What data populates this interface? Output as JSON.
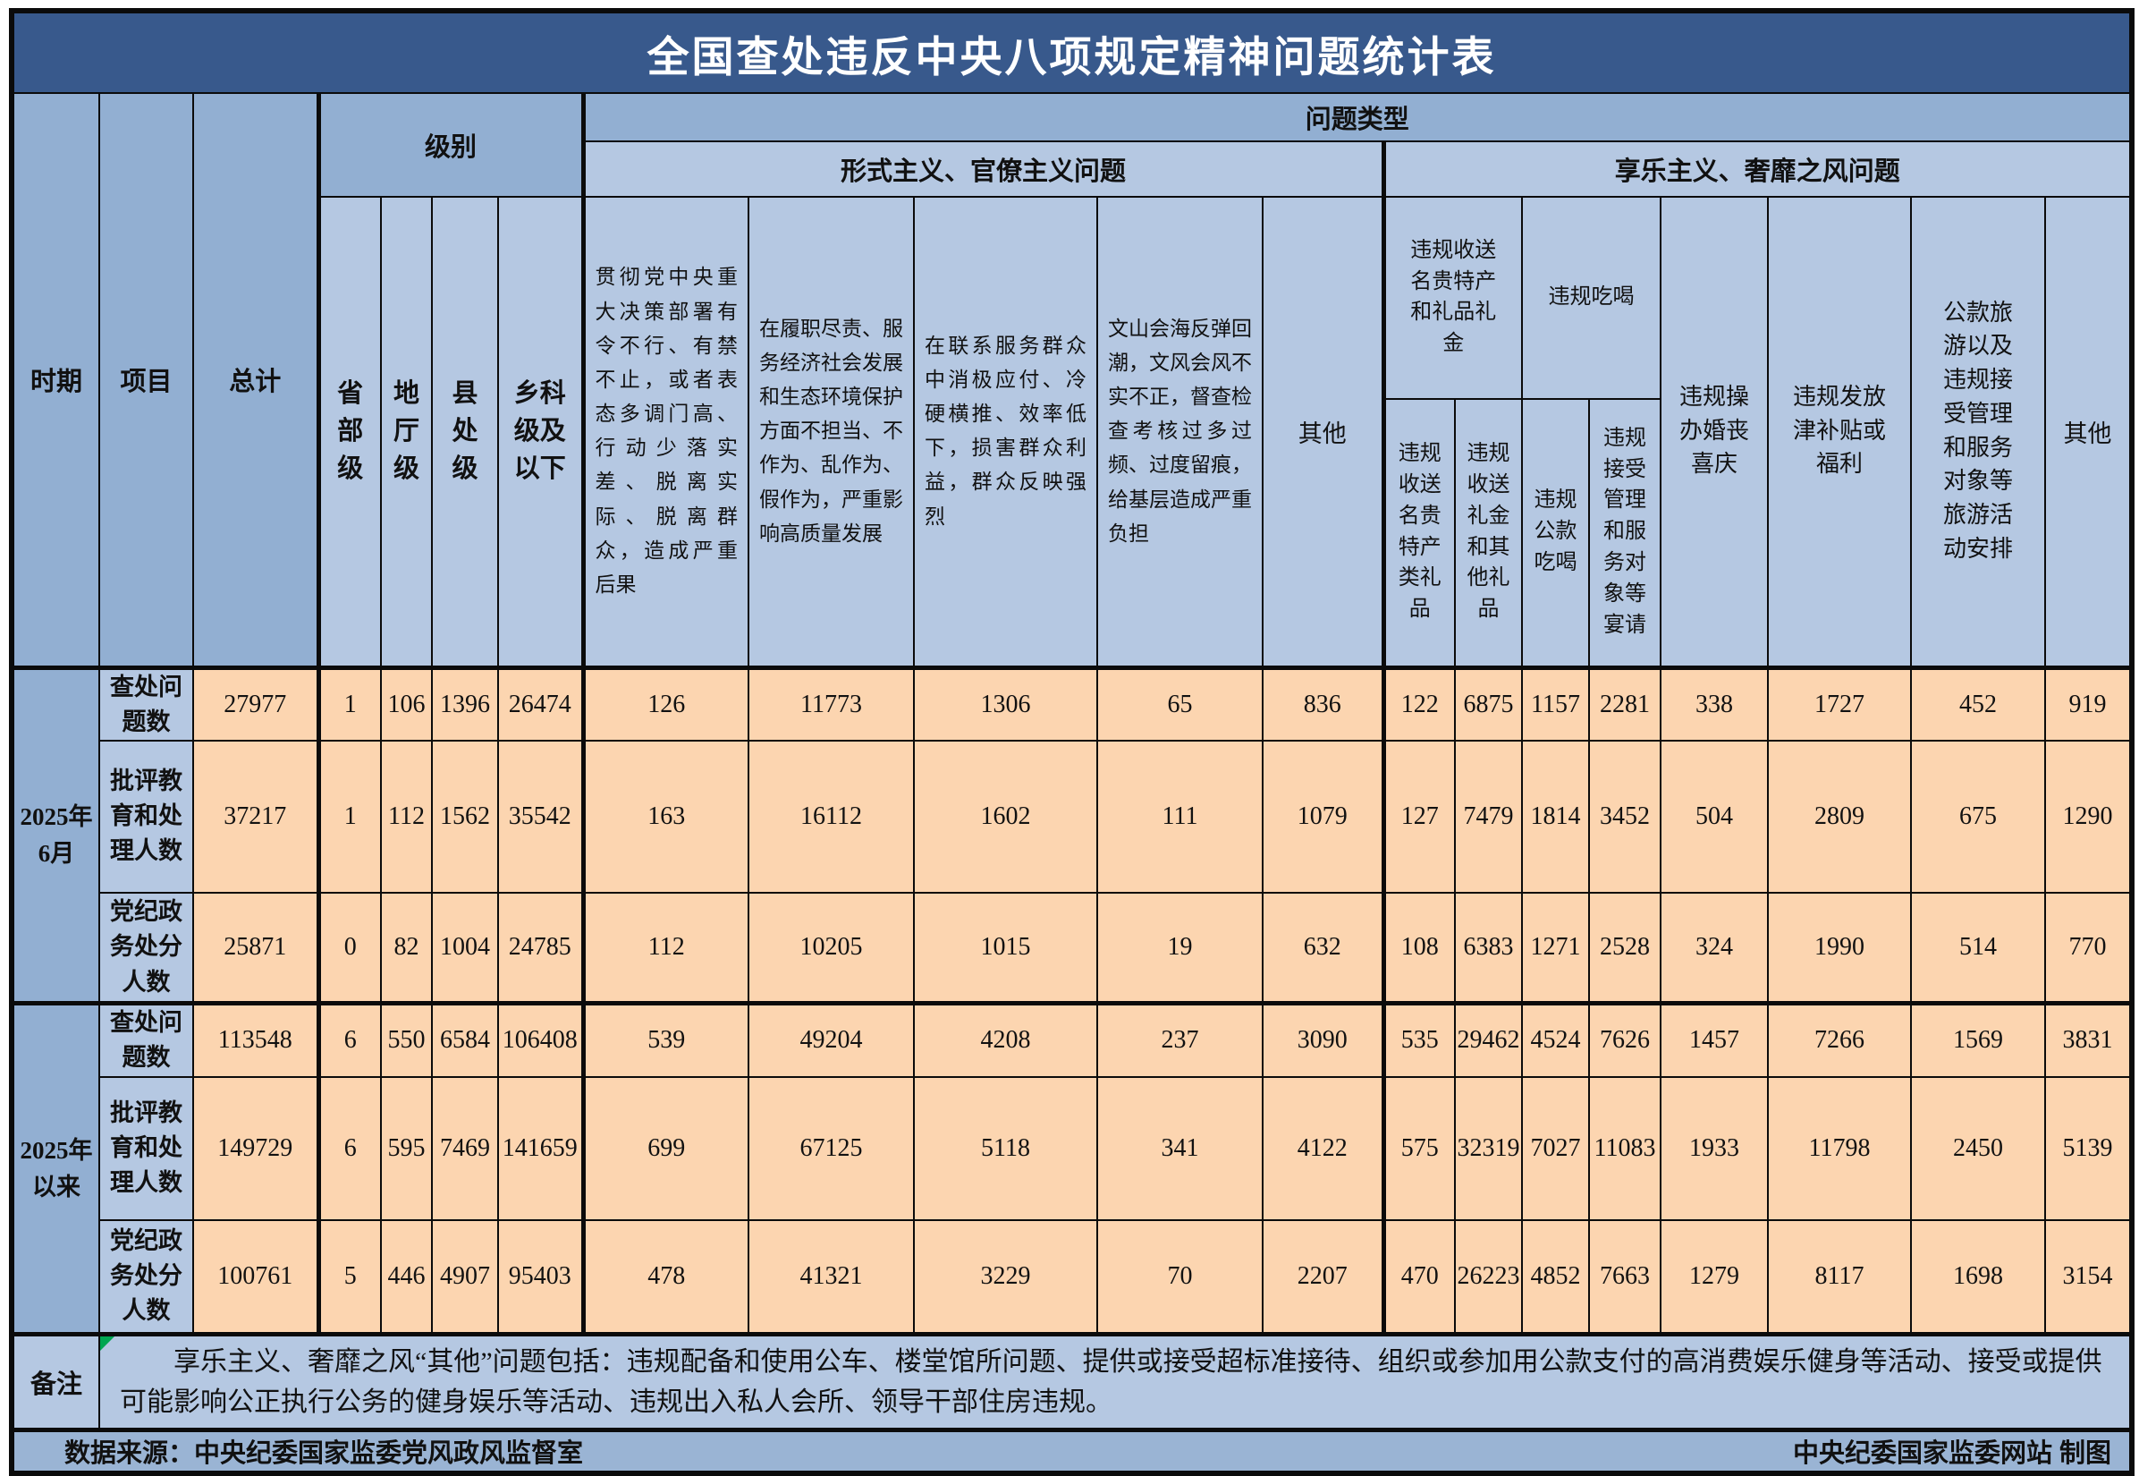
{
  "title": "全国查处违反中央八项规定精神问题统计表",
  "header": {
    "period": "时期",
    "item": "项目",
    "total": "总计",
    "level_group": "级别",
    "problem_type_group": "问题类型",
    "levels": [
      "省部级",
      "地厅级",
      "县处级",
      "乡科级及以下"
    ],
    "formalism": {
      "group": "形式主义、官僚主义问题",
      "columns": [
        "贯彻党中央重大决策部署有令不行、有禁不止，或者表态多调门高、行动少落实差、脱离实际、脱离群众，造成严重后果",
        "在履职尽责、服务经济社会发展和生态环境保护方面不担当、不作为、乱作为、假作为，严重影响高质量发展",
        "在联系服务群众中消极应付、冷硬横推、效率低下，损害群众利益，群众反映强烈",
        "文山会海反弹回潮，文风会风不实不正，督查检查考核过多过频、过度留痕，给基层造成严重负担",
        "其他"
      ]
    },
    "hedonism": {
      "group": "享乐主义、奢靡之风问题",
      "gift_group": "违规收送名贵特产和礼品礼金",
      "gift_columns": [
        "违规收送名贵特产类礼品",
        "违规收送礼金和其他礼品"
      ],
      "dining_group": "违规吃喝",
      "dining_columns": [
        "违规公款吃喝",
        "违规接受管理和服务对象等宴请"
      ],
      "columns": [
        "违规操办婚丧喜庆",
        "违规发放津补贴或福利",
        "公款旅游以及违规接受管理和服务对象等旅游活动安排",
        "其他"
      ]
    }
  },
  "periods": [
    {
      "label": "2025年6月",
      "rows": [
        {
          "label": "查处问题数",
          "values": [
            27977,
            1,
            106,
            1396,
            26474,
            126,
            11773,
            1306,
            65,
            836,
            122,
            6875,
            1157,
            2281,
            338,
            1727,
            452,
            919
          ]
        },
        {
          "label": "批评教育和处理人数",
          "values": [
            37217,
            1,
            112,
            1562,
            35542,
            163,
            16112,
            1602,
            111,
            1079,
            127,
            7479,
            1814,
            3452,
            504,
            2809,
            675,
            1290
          ]
        },
        {
          "label": "党纪政务处分人数",
          "values": [
            25871,
            0,
            82,
            1004,
            24785,
            112,
            10205,
            1015,
            19,
            632,
            108,
            6383,
            1271,
            2528,
            324,
            1990,
            514,
            770
          ]
        }
      ]
    },
    {
      "label": "2025年以来",
      "rows": [
        {
          "label": "查处问题数",
          "values": [
            113548,
            6,
            550,
            6584,
            106408,
            539,
            49204,
            4208,
            237,
            3090,
            535,
            29462,
            4524,
            7626,
            1457,
            7266,
            1569,
            3831
          ]
        },
        {
          "label": "批评教育和处理人数",
          "values": [
            149729,
            6,
            595,
            7469,
            141659,
            699,
            67125,
            5118,
            341,
            4122,
            575,
            32319,
            7027,
            11083,
            1933,
            11798,
            2450,
            5139
          ]
        },
        {
          "label": "党纪政务处分人数",
          "values": [
            100761,
            5,
            446,
            4907,
            95403,
            478,
            41321,
            3229,
            70,
            2207,
            470,
            26223,
            4852,
            7663,
            1279,
            8117,
            1698,
            3154
          ]
        }
      ]
    }
  ],
  "remark": {
    "label": "备注",
    "text": "享乐主义、奢靡之风“其他”问题包括：违规配备和使用公车、楼堂馆所问题、提供或接受超标准接待、组织或参加用公款支付的高消费娱乐健身等活动、接受或提供可能影响公正执行公务的健身娱乐等活动、违规出入私人会所、领导干部住房违规。"
  },
  "footer": {
    "source": "数据来源：中央纪委国家监委党风政风监督室",
    "credit": "中央纪委国家监委网站 制图"
  },
  "colors": {
    "title_bg": "#38598C",
    "header_dark": "#92AFD2",
    "header_light": "#B5C8E2",
    "data_bg": "#FCD5B0",
    "footer_bg": "#9AB4D4",
    "border": "#0B0B0B",
    "remark_triangle": "#00A650"
  },
  "chart_data": {
    "type": "table",
    "title": "全国查处违反中央八项规定精神问题统计表",
    "row_groups": [
      "2025年6月",
      "2025年以来"
    ],
    "row_items": [
      "查处问题数",
      "批评教育和处理人数",
      "党纪政务处分人数"
    ],
    "columns": [
      "总计",
      "省部级",
      "地厅级",
      "县处级",
      "乡科级及以下",
      "形式主义-贯彻党中央重大决策部署有令不行有禁不止等",
      "形式主义-在履职尽责服务经济社会发展和生态环境保护方面不担当不作为等",
      "形式主义-在联系服务群众中消极应付冷硬横推效率低下等",
      "形式主义-文山会海反弹回潮督查检查考核过多过频等",
      "形式主义-其他",
      "违规收送名贵特产类礼品",
      "违规收送礼金和其他礼品",
      "违规公款吃喝",
      "违规接受管理和服务对象等宴请",
      "违规操办婚丧喜庆",
      "违规发放津补贴或福利",
      "公款旅游以及违规接受管理和服务对象等旅游活动安排",
      "享乐主义-其他"
    ],
    "rows": [
      {
        "period": "2025年6月",
        "item": "查处问题数",
        "values": [
          27977,
          1,
          106,
          1396,
          26474,
          126,
          11773,
          1306,
          65,
          836,
          122,
          6875,
          1157,
          2281,
          338,
          1727,
          452,
          919
        ]
      },
      {
        "period": "2025年6月",
        "item": "批评教育和处理人数",
        "values": [
          37217,
          1,
          112,
          1562,
          35542,
          163,
          16112,
          1602,
          111,
          1079,
          127,
          7479,
          1814,
          3452,
          504,
          2809,
          675,
          1290
        ]
      },
      {
        "period": "2025年6月",
        "item": "党纪政务处分人数",
        "values": [
          25871,
          0,
          82,
          1004,
          24785,
          112,
          10205,
          1015,
          19,
          632,
          108,
          6383,
          1271,
          2528,
          324,
          1990,
          514,
          770
        ]
      },
      {
        "period": "2025年以来",
        "item": "查处问题数",
        "values": [
          113548,
          6,
          550,
          6584,
          106408,
          539,
          49204,
          4208,
          237,
          3090,
          535,
          29462,
          4524,
          7626,
          1457,
          7266,
          1569,
          3831
        ]
      },
      {
        "period": "2025年以来",
        "item": "批评教育和处理人数",
        "values": [
          149729,
          6,
          595,
          7469,
          141659,
          699,
          67125,
          5118,
          341,
          4122,
          575,
          32319,
          7027,
          11083,
          1933,
          11798,
          2450,
          5139
        ]
      },
      {
        "period": "2025年以来",
        "item": "党纪政务处分人数",
        "values": [
          100761,
          5,
          446,
          4907,
          95403,
          478,
          41321,
          3229,
          70,
          2207,
          470,
          26223,
          4852,
          7663,
          1279,
          8117,
          1698,
          3154
        ]
      }
    ]
  }
}
